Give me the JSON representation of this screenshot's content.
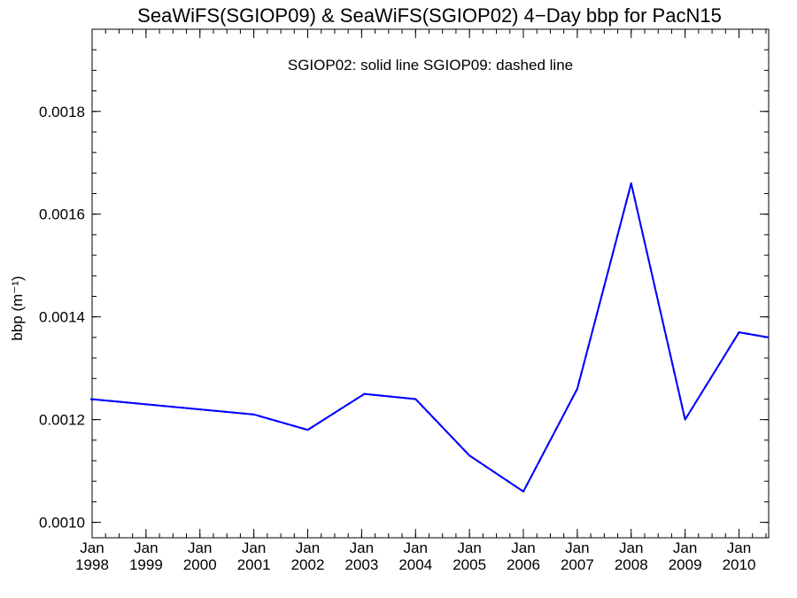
{
  "chart_data": {
    "type": "line",
    "title": "SeaWiFS(SGIOP09) & SeaWiFS(SGIOP02) 4−Day bbp for PacN15",
    "annotation": "SGIOP02: solid line   SGIOP09: dashed line",
    "ylabel": "bbp (m⁻¹)",
    "xlabel": "",
    "xlim": [
      1998.0,
      2010.55
    ],
    "ylim": [
      0.00097,
      0.00196
    ],
    "y_ticks": [
      0.001,
      0.0012,
      0.0014,
      0.0016,
      0.0018
    ],
    "y_tick_labels": [
      "0.0010",
      "0.0012",
      "0.0014",
      "0.0016",
      "0.0018"
    ],
    "x_ticks": [
      {
        "month": "Jan",
        "year": "1998",
        "x": 1998
      },
      {
        "month": "Jan",
        "year": "1999",
        "x": 1999
      },
      {
        "month": "Jan",
        "year": "2000",
        "x": 2000
      },
      {
        "month": "Jan",
        "year": "2001",
        "x": 2001
      },
      {
        "month": "Jan",
        "year": "2002",
        "x": 2002
      },
      {
        "month": "Jan",
        "year": "2003",
        "x": 2003
      },
      {
        "month": "Jan",
        "year": "2004",
        "x": 2004
      },
      {
        "month": "Jan",
        "year": "2005",
        "x": 2005
      },
      {
        "month": "Jan",
        "year": "2006",
        "x": 2006
      },
      {
        "month": "Jan",
        "year": "2007",
        "x": 2007
      },
      {
        "month": "Jan",
        "year": "2008",
        "x": 2008
      },
      {
        "month": "Jan",
        "year": "2009",
        "x": 2009
      },
      {
        "month": "Jan",
        "year": "2010",
        "x": 2010
      }
    ],
    "grid": false,
    "colors": {
      "line": "#0000ff",
      "frame": "#000000"
    },
    "series": [
      {
        "style": "solid",
        "x": [
          1997.97,
          2001.0,
          2002.0,
          2003.05,
          2004.0,
          2005.0,
          2006.0,
          2007.0,
          2008.0,
          2009.0,
          2010.0,
          2010.55
        ],
        "y": [
          0.00124,
          0.00121,
          0.00118,
          0.00125,
          0.00124,
          0.00113,
          0.00106,
          0.00126,
          0.00166,
          0.0012,
          0.00137,
          0.00136
        ]
      },
      {
        "style": "dashed",
        "x": [
          1997.97,
          2001.0,
          2002.0,
          2003.05,
          2004.0,
          2005.0,
          2006.0,
          2007.0,
          2008.0,
          2009.0,
          2010.0,
          2010.55
        ],
        "y": [
          0.00124,
          0.00121,
          0.00118,
          0.00125,
          0.00124,
          0.00113,
          0.00106,
          0.00126,
          0.00166,
          0.0012,
          0.00137,
          0.00136
        ]
      }
    ]
  }
}
